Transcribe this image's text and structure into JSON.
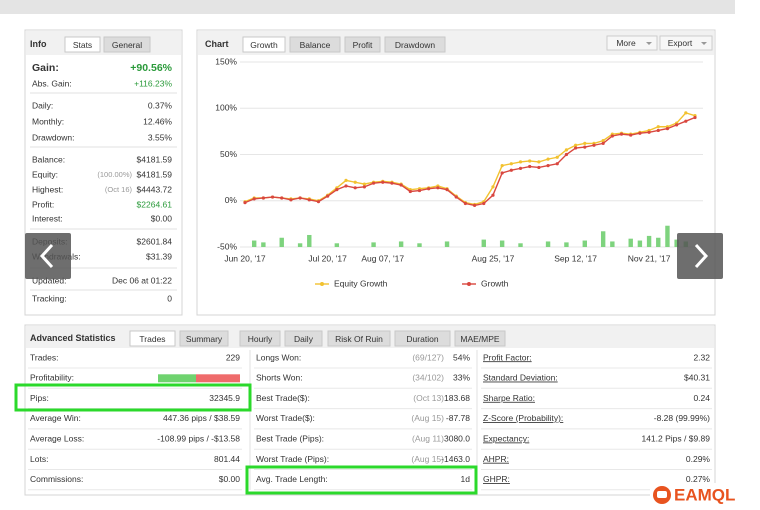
{
  "info_panel": {
    "tabs": [
      "Info",
      "Stats",
      "General"
    ],
    "rows": [
      {
        "label": "Gain:",
        "value": "+90.56%"
      },
      {
        "label": "Abs. Gain:",
        "value": "+116.23%"
      },
      {
        "label": "Daily:",
        "value": "0.37%"
      },
      {
        "label": "Monthly:",
        "value": "12.46%"
      },
      {
        "label": "Drawdown:",
        "value": "3.55%"
      },
      {
        "label": "Balance:",
        "value": "$4181.59"
      },
      {
        "label": "Equity:",
        "note": "(100.00%)",
        "value": "$4181.59"
      },
      {
        "label": "Highest:",
        "note": "(Oct 16)",
        "value": "$4443.72"
      },
      {
        "label": "Profit:",
        "value": "$2264.61"
      },
      {
        "label": "Interest:",
        "value": "$0.00"
      },
      {
        "label": "Deposits:",
        "value": "$2601.84"
      },
      {
        "label": "Withdrawals:",
        "value": "$31.39"
      },
      {
        "label": "Updated:",
        "value": "Dec 06 at 01:22"
      },
      {
        "label": "Tracking:",
        "value": "0"
      }
    ]
  },
  "chart_panel": {
    "tabs": [
      "Chart",
      "Growth",
      "Balance",
      "Profit",
      "Drawdown"
    ],
    "buttons": [
      "More",
      "Export"
    ],
    "chart": {
      "type": "line",
      "categories": [
        "Jun 20, '17",
        null,
        null,
        null,
        null,
        null,
        null,
        null,
        null,
        "Jul 20, '17",
        null,
        null,
        null,
        null,
        null,
        "Aug 07, '17",
        null,
        null,
        null,
        null,
        null,
        null,
        null,
        null,
        null,
        null,
        null,
        "Aug 25, '17",
        null,
        null,
        null,
        null,
        null,
        null,
        null,
        null,
        "Sep 12, '17",
        null,
        null,
        null,
        null,
        null,
        null,
        null,
        "Nov 21, '17",
        null,
        null,
        null,
        null,
        null
      ],
      "ylim": [
        -50,
        150
      ],
      "yticks": [
        {
          "value": 150,
          "label": "150%"
        },
        {
          "value": 100,
          "label": "100%"
        },
        {
          "value": 50,
          "label": "50%"
        },
        {
          "value": 0,
          "label": "0%"
        },
        {
          "value": -50,
          "label": "-50%"
        }
      ],
      "grid": true,
      "series": [
        {
          "name": "Equity Growth",
          "color": "#f2c230",
          "values": [
            -1,
            3,
            3,
            4,
            3,
            2,
            3,
            2,
            0,
            6,
            14,
            22,
            20,
            18,
            20,
            21,
            20,
            18,
            12,
            13,
            14,
            16,
            13,
            5,
            -2,
            -4,
            -1,
            15,
            38,
            40,
            42,
            43,
            42,
            45,
            47,
            55,
            60,
            62,
            62,
            65,
            72,
            73,
            72,
            74,
            76,
            80,
            80,
            84,
            95,
            92
          ]
        },
        {
          "name": "Growth",
          "color": "#d9473f",
          "values": [
            -2,
            2,
            3,
            4,
            3,
            1,
            3,
            1,
            -1,
            5,
            12,
            16,
            14,
            15,
            19,
            20,
            19,
            17,
            10,
            11,
            13,
            14,
            12,
            4,
            -3,
            -5,
            -3,
            6,
            30,
            33,
            35,
            37,
            36,
            38,
            40,
            50,
            57,
            58,
            60,
            62,
            70,
            72,
            71,
            73,
            74,
            76,
            78,
            82,
            86,
            90
          ]
        }
      ],
      "bars": {
        "color": "#7ed37e",
        "values": [
          null,
          -43,
          -45,
          null,
          -40,
          null,
          -46,
          -37,
          null,
          null,
          -46,
          null,
          null,
          null,
          -45,
          null,
          null,
          -44,
          null,
          -46,
          null,
          null,
          -44,
          null,
          null,
          null,
          -42,
          null,
          -43,
          null,
          -46,
          null,
          null,
          -44,
          null,
          -45,
          null,
          -43,
          null,
          -33,
          -44,
          null,
          -41,
          -43,
          -38,
          -40,
          -27,
          -42,
          -44,
          null
        ]
      }
    }
  },
  "advanced_panel": {
    "tabs": [
      "Advanced Statistics",
      "Trades",
      "Summary",
      "Hourly",
      "Daily",
      "Risk Of Ruin",
      "Duration",
      "MAE/MPE"
    ],
    "columns": [
      [
        {
          "label": "Trades:",
          "value": "229"
        },
        {
          "label": "Profitability:"
        },
        {
          "label": "Pips:",
          "value": "32345.9"
        },
        {
          "label": "Average Win:",
          "value": "447.36 pips / $38.59"
        },
        {
          "label": "Average Loss:",
          "value": "-108.99 pips / -$13.58"
        },
        {
          "label": "Lots:",
          "value": "801.44"
        },
        {
          "label": "Commissions:",
          "value": "$0.00"
        }
      ],
      [
        {
          "label": "Longs Won:",
          "note": "(69/127)",
          "value": "54%"
        },
        {
          "label": "Shorts Won:",
          "note": "(34/102)",
          "value": "33%"
        },
        {
          "label": "Best Trade($):",
          "note": "(Oct 13)",
          "value": "183.68"
        },
        {
          "label": "Worst Trade($):",
          "note": "(Aug 15)",
          "value": "-87.78"
        },
        {
          "label": "Best Trade (Pips):",
          "note": "(Aug 11)",
          "value": "3080.0"
        },
        {
          "label": "Worst Trade (Pips):",
          "note": "(Aug 15)",
          "value": "-1463.0"
        },
        {
          "label": "Avg. Trade Length:",
          "value": "1d"
        }
      ],
      [
        {
          "label": "Profit Factor:",
          "value": "2.32"
        },
        {
          "label": "Standard Deviation:",
          "value": "$40.31"
        },
        {
          "label": "Sharpe Ratio:",
          "value": "0.24"
        },
        {
          "label": "Z-Score (Probability):",
          "value": "-8.28 (99.99%)"
        },
        {
          "label": "Expectancy:",
          "value": "141.2 Pips / $9.89"
        },
        {
          "label": "AHPR:",
          "value": "0.29%"
        },
        {
          "label": "GHPR:",
          "value": "0.27%"
        }
      ]
    ]
  },
  "watermark": "EAMQL"
}
